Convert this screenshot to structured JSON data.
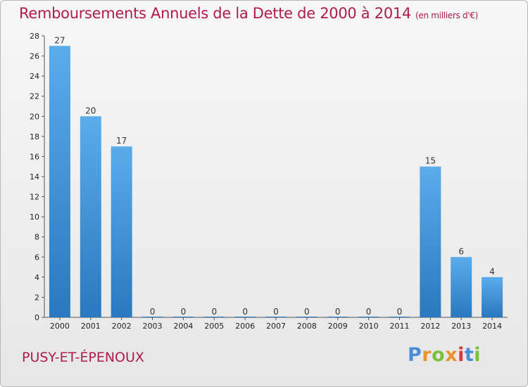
{
  "chart_data": {
    "type": "bar",
    "title": "Remboursements Annuels de la Dette de 2000 à 2014",
    "unit_note": "(en milliers d'€)",
    "categories": [
      "2000",
      "2001",
      "2002",
      "2003",
      "2004",
      "2005",
      "2006",
      "2007",
      "2008",
      "2009",
      "2010",
      "2011",
      "2012",
      "2013",
      "2014"
    ],
    "values": [
      27,
      20,
      17,
      0,
      0,
      0,
      0,
      0,
      0,
      0,
      0,
      0,
      15,
      6,
      4
    ],
    "xlabel": "",
    "ylabel": "",
    "ylim": [
      0,
      28
    ],
    "yticks": [
      0,
      2,
      4,
      6,
      8,
      10,
      12,
      14,
      16,
      18,
      20,
      22,
      24,
      26,
      28
    ],
    "grid": false,
    "bar_color": "#4a9ad9"
  },
  "place_name": "PUSY-ET-ÉPENOUX",
  "logo": {
    "letters": [
      "P",
      "r",
      "o",
      "x",
      "i",
      "t",
      "i"
    ],
    "colors": [
      "#4a8fd6",
      "#e8932b",
      "#7cbf3a",
      "#e8932b",
      "#d63a3a",
      "#4a8fd6",
      "#7cbf3a"
    ]
  }
}
